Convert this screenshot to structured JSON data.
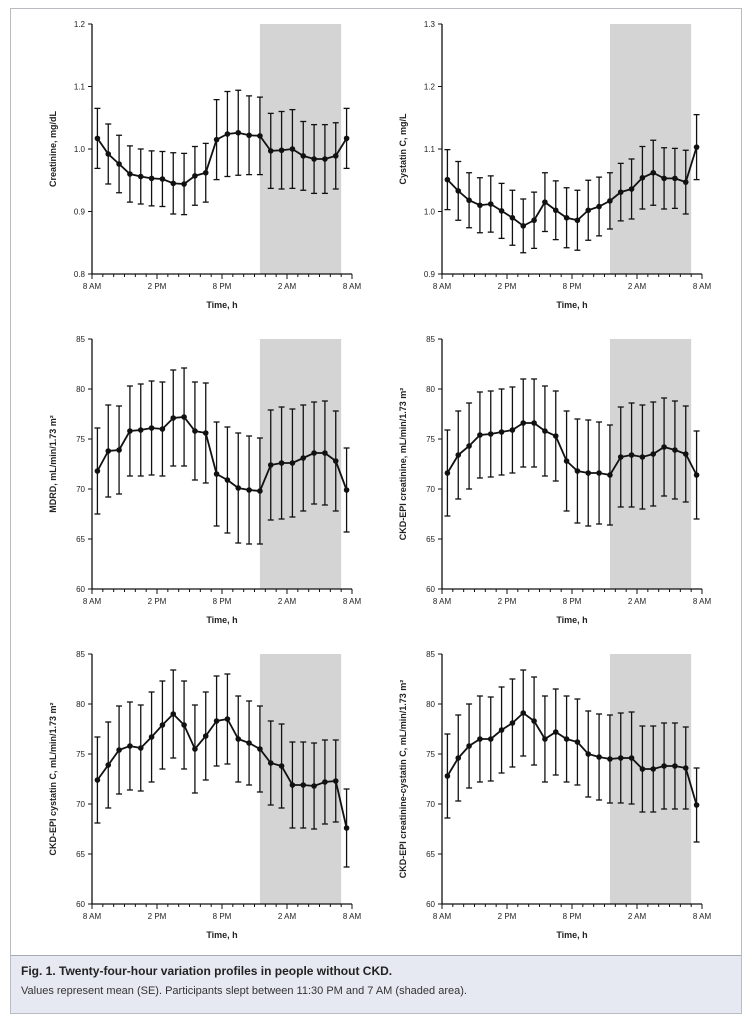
{
  "caption": {
    "label": "Fig. 1.",
    "title": "Twenty-four-hour variation profiles in people without CKD.",
    "body": "Values represent mean (SE). Participants slept between 11:30 PM and 7 AM (shaded area)."
  },
  "colors": {
    "line": "#111111",
    "shade": "#d4d4d4",
    "axis": "#111111"
  },
  "chart_data": [
    {
      "type": "line",
      "ylabel": "Creatinine, mg/dL",
      "xlabel": "Time, h",
      "xlim": [
        0,
        24
      ],
      "xticks": [
        0,
        6,
        12,
        18,
        24
      ],
      "xtick_labels": [
        "8 AM",
        "2 PM",
        "8 PM",
        "2 AM",
        "8 AM"
      ],
      "ylim": [
        0.8,
        1.2
      ],
      "yticks": [
        0.8,
        0.9,
        1.0,
        1.1,
        1.2
      ],
      "ytick_labels": [
        "0.8",
        "0.9",
        "1.0",
        "1.1",
        "1.2"
      ],
      "shaded": [
        15.5,
        23
      ],
      "x": [
        0.5,
        1.5,
        2.5,
        3.5,
        4.5,
        5.5,
        6.5,
        7.5,
        8.5,
        9.5,
        10.5,
        11.5,
        12.5,
        13.5,
        14.5,
        15.5,
        16.5,
        17.5,
        18.5,
        19.5,
        20.5,
        21.5,
        22.5,
        23.5
      ],
      "y": [
        1.017,
        0.992,
        0.976,
        0.96,
        0.956,
        0.953,
        0.952,
        0.945,
        0.944,
        0.957,
        0.962,
        1.015,
        1.024,
        1.026,
        1.022,
        1.021,
        0.997,
        0.998,
        1.0,
        0.989,
        0.984,
        0.984,
        0.989,
        1.017
      ],
      "err": [
        0.048,
        0.048,
        0.046,
        0.045,
        0.044,
        0.044,
        0.044,
        0.049,
        0.049,
        0.047,
        0.047,
        0.064,
        0.068,
        0.068,
        0.063,
        0.062,
        0.06,
        0.062,
        0.063,
        0.055,
        0.055,
        0.055,
        0.053,
        0.048
      ]
    },
    {
      "type": "line",
      "ylabel": "Cystatin C, mg/L",
      "xlabel": "Time, h",
      "xlim": [
        0,
        24
      ],
      "xticks": [
        0,
        6,
        12,
        18,
        24
      ],
      "xtick_labels": [
        "8 AM",
        "2 PM",
        "8 PM",
        "2 AM",
        "8 AM"
      ],
      "ylim": [
        0.9,
        1.3
      ],
      "yticks": [
        0.9,
        1.0,
        1.1,
        1.2,
        1.3
      ],
      "ytick_labels": [
        "0.9",
        "1.0",
        "1.1",
        "1.2",
        "1.3"
      ],
      "shaded": [
        15.5,
        23
      ],
      "x": [
        0.5,
        1.5,
        2.5,
        3.5,
        4.5,
        5.5,
        6.5,
        7.5,
        8.5,
        9.5,
        10.5,
        11.5,
        12.5,
        13.5,
        14.5,
        15.5,
        16.5,
        17.5,
        18.5,
        19.5,
        20.5,
        21.5,
        22.5,
        23.5
      ],
      "y": [
        1.051,
        1.033,
        1.018,
        1.01,
        1.012,
        1.001,
        0.99,
        0.977,
        0.986,
        1.015,
        1.002,
        0.99,
        0.986,
        1.002,
        1.008,
        1.017,
        1.031,
        1.036,
        1.054,
        1.062,
        1.053,
        1.053,
        1.047,
        1.103
      ],
      "err": [
        0.048,
        0.047,
        0.044,
        0.044,
        0.045,
        0.044,
        0.044,
        0.043,
        0.045,
        0.047,
        0.047,
        0.048,
        0.048,
        0.048,
        0.047,
        0.045,
        0.046,
        0.048,
        0.05,
        0.052,
        0.049,
        0.048,
        0.051,
        0.052
      ]
    },
    {
      "type": "line",
      "ylabel": "MDRD, mL/min/1.73 m²",
      "xlabel": "Time, h",
      "xlim": [
        0,
        24
      ],
      "xticks": [
        0,
        6,
        12,
        18,
        24
      ],
      "xtick_labels": [
        "8 AM",
        "2 PM",
        "8 PM",
        "2 AM",
        "8 AM"
      ],
      "ylim": [
        60,
        85
      ],
      "yticks": [
        60,
        65,
        70,
        75,
        80,
        85
      ],
      "ytick_labels": [
        "60",
        "65",
        "70",
        "75",
        "80",
        "85"
      ],
      "shaded": [
        15.5,
        23
      ],
      "x": [
        0.5,
        1.5,
        2.5,
        3.5,
        4.5,
        5.5,
        6.5,
        7.5,
        8.5,
        9.5,
        10.5,
        11.5,
        12.5,
        13.5,
        14.5,
        15.5,
        16.5,
        17.5,
        18.5,
        19.5,
        20.5,
        21.5,
        22.5,
        23.5
      ],
      "y": [
        71.8,
        73.8,
        73.9,
        75.8,
        75.9,
        76.1,
        76.0,
        77.1,
        77.2,
        75.8,
        75.6,
        71.5,
        70.9,
        70.1,
        69.9,
        69.8,
        72.4,
        72.6,
        72.6,
        73.1,
        73.6,
        73.6,
        72.8,
        69.9
      ],
      "err": [
        4.3,
        4.6,
        4.4,
        4.5,
        4.6,
        4.7,
        4.7,
        4.8,
        4.9,
        4.9,
        5.0,
        5.2,
        5.3,
        5.5,
        5.4,
        5.3,
        5.5,
        5.6,
        5.4,
        5.3,
        5.1,
        5.2,
        5.0,
        4.2
      ]
    },
    {
      "type": "line",
      "ylabel": "CKD-EPI creatinine, mL/min/1.73 m²",
      "xlabel": "Time, h",
      "xlim": [
        0,
        24
      ],
      "xticks": [
        0,
        6,
        12,
        18,
        24
      ],
      "xtick_labels": [
        "8 AM",
        "2 PM",
        "8 PM",
        "2 AM",
        "8 AM"
      ],
      "ylim": [
        60,
        85
      ],
      "yticks": [
        60,
        65,
        70,
        75,
        80,
        85
      ],
      "ytick_labels": [
        "60",
        "65",
        "70",
        "75",
        "80",
        "85"
      ],
      "shaded": [
        15.5,
        23
      ],
      "x": [
        0.5,
        1.5,
        2.5,
        3.5,
        4.5,
        5.5,
        6.5,
        7.5,
        8.5,
        9.5,
        10.5,
        11.5,
        12.5,
        13.5,
        14.5,
        15.5,
        16.5,
        17.5,
        18.5,
        19.5,
        20.5,
        21.5,
        22.5,
        23.5
      ],
      "y": [
        71.6,
        73.4,
        74.3,
        75.4,
        75.5,
        75.7,
        75.9,
        76.6,
        76.6,
        75.8,
        75.3,
        72.8,
        71.8,
        71.6,
        71.6,
        71.4,
        73.2,
        73.4,
        73.2,
        73.5,
        74.2,
        73.9,
        73.5,
        71.4
      ],
      "err": [
        4.3,
        4.4,
        4.3,
        4.3,
        4.3,
        4.3,
        4.3,
        4.4,
        4.4,
        4.5,
        4.5,
        5.0,
        5.2,
        5.3,
        5.1,
        5.0,
        5.0,
        5.2,
        5.2,
        5.2,
        4.9,
        4.9,
        4.8,
        4.4
      ]
    },
    {
      "type": "line",
      "ylabel": "CKD-EPI cystatin C, mL/min/1.73 m²",
      "xlabel": "Time, h",
      "xlim": [
        0,
        24
      ],
      "xticks": [
        0,
        6,
        12,
        18,
        24
      ],
      "xtick_labels": [
        "8 AM",
        "2 PM",
        "8 PM",
        "2 AM",
        "8 AM"
      ],
      "ylim": [
        60,
        85
      ],
      "yticks": [
        60,
        65,
        70,
        75,
        80,
        85
      ],
      "ytick_labels": [
        "60",
        "65",
        "70",
        "75",
        "80",
        "85"
      ],
      "shaded": [
        15.5,
        23
      ],
      "x": [
        0.5,
        1.5,
        2.5,
        3.5,
        4.5,
        5.5,
        6.5,
        7.5,
        8.5,
        9.5,
        10.5,
        11.5,
        12.5,
        13.5,
        14.5,
        15.5,
        16.5,
        17.5,
        18.5,
        19.5,
        20.5,
        21.5,
        22.5,
        23.5
      ],
      "y": [
        72.4,
        73.9,
        75.4,
        75.8,
        75.6,
        76.7,
        77.9,
        79.0,
        77.9,
        75.5,
        76.8,
        78.3,
        78.5,
        76.5,
        76.1,
        75.5,
        74.1,
        73.8,
        71.9,
        71.9,
        71.8,
        72.2,
        72.3,
        67.6
      ],
      "err": [
        4.3,
        4.3,
        4.4,
        4.4,
        4.3,
        4.5,
        4.4,
        4.4,
        4.4,
        4.4,
        4.4,
        4.5,
        4.5,
        4.3,
        4.2,
        4.3,
        4.2,
        4.2,
        4.3,
        4.3,
        4.3,
        4.2,
        4.1,
        3.9
      ]
    },
    {
      "type": "line",
      "ylabel": "CKD-EPI creatinine-cystatin C, mL/min/1.73 m²",
      "xlabel": "Time, h",
      "xlim": [
        0,
        24
      ],
      "xticks": [
        0,
        6,
        12,
        18,
        24
      ],
      "xtick_labels": [
        "8 AM",
        "2 PM",
        "8 PM",
        "2 AM",
        "8 AM"
      ],
      "ylim": [
        60,
        85
      ],
      "yticks": [
        60,
        65,
        70,
        75,
        80,
        85
      ],
      "ytick_labels": [
        "60",
        "65",
        "70",
        "75",
        "80",
        "85"
      ],
      "shaded": [
        15.5,
        23
      ],
      "x": [
        0.5,
        1.5,
        2.5,
        3.5,
        4.5,
        5.5,
        6.5,
        7.5,
        8.5,
        9.5,
        10.5,
        11.5,
        12.5,
        13.5,
        14.5,
        15.5,
        16.5,
        17.5,
        18.5,
        19.5,
        20.5,
        21.5,
        22.5,
        23.5
      ],
      "y": [
        72.8,
        74.6,
        75.8,
        76.5,
        76.5,
        77.4,
        78.1,
        79.1,
        78.3,
        76.5,
        77.2,
        76.5,
        76.2,
        75.0,
        74.7,
        74.5,
        74.6,
        74.6,
        73.5,
        73.5,
        73.8,
        73.8,
        73.6,
        69.9
      ],
      "err": [
        4.2,
        4.3,
        4.2,
        4.3,
        4.2,
        4.3,
        4.4,
        4.3,
        4.4,
        4.3,
        4.3,
        4.3,
        4.3,
        4.3,
        4.3,
        4.4,
        4.5,
        4.6,
        4.3,
        4.3,
        4.3,
        4.3,
        4.1,
        3.7
      ]
    }
  ]
}
